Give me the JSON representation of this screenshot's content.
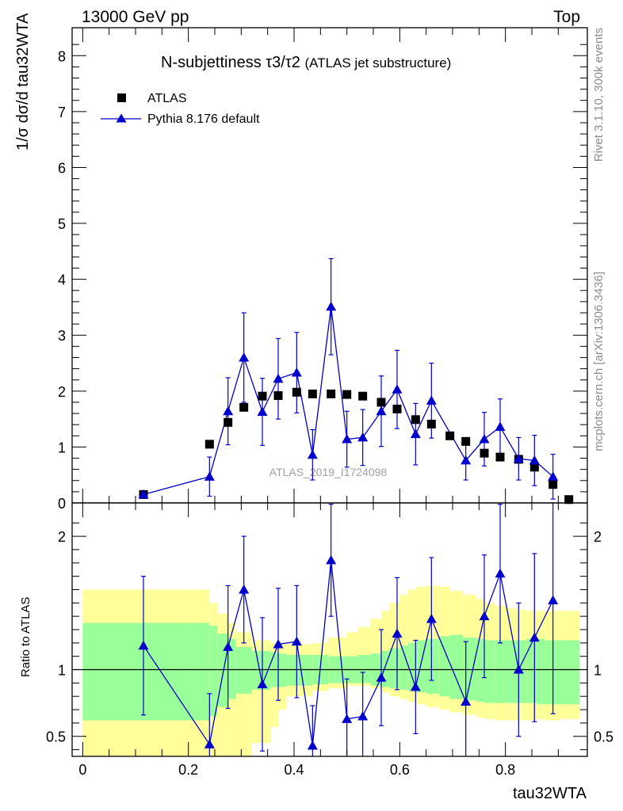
{
  "header": {
    "left": "13000 GeV pp",
    "right": "Top"
  },
  "side": {
    "rivet": "Rivet 3.1.10,  300k events",
    "mcplots": "mcplots.cern.ch [arXiv:1306.3436]"
  },
  "colors": {
    "atlas": "#000000",
    "pythia": "#0000cc",
    "band_inner": "#99ff99",
    "band_outer": "#ffff99"
  },
  "chart_data": [
    {
      "type": "scatter",
      "title_main": "N-subjettiness",
      "title_ratio": "τ3/τ2",
      "title_note": "(ATLAS jet substructure)",
      "watermark": "ATLAS_2019_I1724098",
      "ylabel": "1/σ dσ/d tau32WTA",
      "xlabel": "tau32WTA",
      "xlim": [
        -0.02,
        0.955
      ],
      "ylim": [
        0,
        8.5
      ],
      "yticks": [
        0,
        1,
        2,
        3,
        4,
        5,
        6,
        7,
        8
      ],
      "ytick_labels": [
        "0",
        "1",
        "2",
        "3",
        "4",
        "5",
        "6",
        "7",
        "8"
      ],
      "legend": {
        "position": "top-left",
        "entries": [
          "ATLAS",
          "Pythia 8.176 default"
        ]
      },
      "series": [
        {
          "name": "ATLAS",
          "x": [
            0.115,
            0.24,
            0.275,
            0.305,
            0.34,
            0.37,
            0.405,
            0.435,
            0.47,
            0.5,
            0.53,
            0.565,
            0.595,
            0.63,
            0.66,
            0.695,
            0.725,
            0.76,
            0.79,
            0.825,
            0.855,
            0.89,
            0.92
          ],
          "y": [
            0.15,
            1.05,
            1.44,
            1.71,
            1.91,
            1.92,
            1.98,
            1.95,
            1.95,
            1.94,
            1.91,
            1.8,
            1.68,
            1.49,
            1.41,
            1.2,
            1.1,
            0.89,
            0.82,
            0.78,
            0.64,
            0.33,
            0.06
          ]
        },
        {
          "name": "Pythia 8.176 default",
          "x": [
            0.115,
            0.24,
            0.275,
            0.305,
            0.34,
            0.37,
            0.405,
            0.435,
            0.47,
            0.5,
            0.53,
            0.565,
            0.595,
            0.63,
            0.66,
            0.725,
            0.76,
            0.79,
            0.825,
            0.855,
            0.89
          ],
          "y": [
            0.15,
            0.47,
            1.64,
            2.6,
            1.63,
            2.22,
            2.33,
            0.86,
            3.51,
            1.14,
            1.17,
            1.64,
            2.03,
            1.23,
            1.83,
            0.76,
            1.14,
            1.36,
            0.79,
            0.76,
            0.47
          ],
          "err": [
            0.05,
            0.35,
            0.6,
            0.8,
            0.6,
            0.72,
            0.72,
            0.45,
            0.86,
            0.5,
            0.5,
            0.63,
            0.7,
            0.55,
            0.67,
            0.35,
            0.48,
            0.5,
            0.38,
            0.45,
            0.4
          ]
        }
      ]
    },
    {
      "type": "scatter",
      "ylabel": "Ratio to ATLAS",
      "xlabel": "tau32WTA",
      "xlim": [
        -0.02,
        0.955
      ],
      "ylim": [
        0.35,
        2.25
      ],
      "yticks": [
        0.5,
        1,
        2
      ],
      "ytick_labels": [
        "0.5",
        "1",
        "2"
      ],
      "xticks": [
        0,
        0.2,
        0.4,
        0.6,
        0.8
      ],
      "xtick_labels": [
        "0",
        "0.2",
        "0.4",
        "0.6",
        "0.8"
      ],
      "reference_line": 1,
      "bands": {
        "edges": [
          0,
          0.2,
          0.24,
          0.255,
          0.275,
          0.29,
          0.32,
          0.355,
          0.37,
          0.385,
          0.435,
          0.465,
          0.5,
          0.52,
          0.545,
          0.565,
          0.58,
          0.6,
          0.615,
          0.63,
          0.65,
          0.675,
          0.695,
          0.72,
          0.745,
          0.76,
          0.78,
          0.8,
          0.82,
          0.84,
          0.86,
          0.875,
          0.905,
          0.94
        ],
        "inner_low": [
          0.62,
          0.62,
          0.65,
          0.72,
          0.78,
          0.82,
          0.85,
          0.87,
          0.87,
          0.88,
          0.89,
          0.9,
          0.9,
          0.9,
          0.88,
          0.87,
          0.86,
          0.85,
          0.84,
          0.83,
          0.82,
          0.8,
          0.78,
          0.77,
          0.76,
          0.75,
          0.75,
          0.75,
          0.75,
          0.75,
          0.74,
          0.74,
          0.74
        ],
        "inner_high": [
          1.35,
          1.35,
          1.33,
          1.27,
          1.23,
          1.17,
          1.14,
          1.13,
          1.12,
          1.11,
          1.11,
          1.1,
          1.1,
          1.11,
          1.12,
          1.14,
          1.16,
          1.18,
          1.2,
          1.22,
          1.23,
          1.25,
          1.26,
          1.24,
          1.23,
          1.22,
          1.22,
          1.22,
          1.22,
          1.23,
          1.23,
          1.22,
          1.22
        ],
        "outer_low": [
          0.35,
          0.35,
          0.35,
          0.35,
          0.35,
          0.35,
          0.45,
          0.57,
          0.7,
          0.8,
          0.84,
          0.86,
          0.88,
          0.88,
          0.86,
          0.83,
          0.8,
          0.78,
          0.76,
          0.74,
          0.72,
          0.7,
          0.68,
          0.66,
          0.64,
          0.63,
          0.62,
          0.62,
          0.62,
          0.62,
          0.63,
          0.62,
          0.63
        ],
        "outer_high": [
          1.6,
          1.6,
          1.5,
          1.42,
          1.35,
          1.28,
          1.22,
          1.2,
          1.2,
          1.19,
          1.2,
          1.24,
          1.28,
          1.32,
          1.38,
          1.44,
          1.5,
          1.56,
          1.6,
          1.62,
          1.63,
          1.62,
          1.59,
          1.56,
          1.53,
          1.5,
          1.48,
          1.46,
          1.45,
          1.44,
          1.44,
          1.44,
          1.44
        ]
      },
      "series": [
        {
          "name": "Pythia 8.176 default",
          "x": [
            0.115,
            0.24,
            0.275,
            0.305,
            0.34,
            0.37,
            0.405,
            0.435,
            0.47,
            0.5,
            0.53,
            0.565,
            0.595,
            0.63,
            0.66,
            0.725,
            0.76,
            0.79,
            0.825,
            0.855,
            0.89
          ],
          "y": [
            1.18,
            0.44,
            1.17,
            1.6,
            0.89,
            1.19,
            1.21,
            0.43,
            1.82,
            0.63,
            0.65,
            0.94,
            1.27,
            0.87,
            1.38,
            0.76,
            1.4,
            1.72,
            1.0,
            1.24,
            1.52
          ],
          "err": [
            0.52,
            0.38,
            0.46,
            0.4,
            0.5,
            0.42,
            0.42,
            0.3,
            0.42,
            0.3,
            0.33,
            0.36,
            0.42,
            0.35,
            0.46,
            0.45,
            0.46,
            0.52,
            0.5,
            0.63,
            0.85
          ]
        }
      ]
    }
  ]
}
